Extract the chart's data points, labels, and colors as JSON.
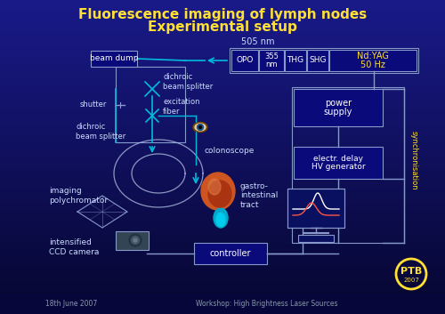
{
  "title_line1": "Fluorescence imaging of lymph nodes",
  "title_line2": "Experimental setup",
  "title_color": "#FFE033",
  "bg_top": "#1A1A8A",
  "bg_bottom": "#060630",
  "box_edge": "#8899CC",
  "box_face": "#0A0A7A",
  "text_white": "#FFFFFF",
  "text_yellow": "#FFE033",
  "label_color": "#CCDDFF",
  "line_color": "#8899CC",
  "cyan_color": "#00BBDD",
  "sync_color": "#FFE033",
  "footer_left": "18th June 2007",
  "footer_right": "Workshop: High Brightness Laser Sources",
  "footer_color": "#8899AA",
  "footer_bg": "#06063A"
}
